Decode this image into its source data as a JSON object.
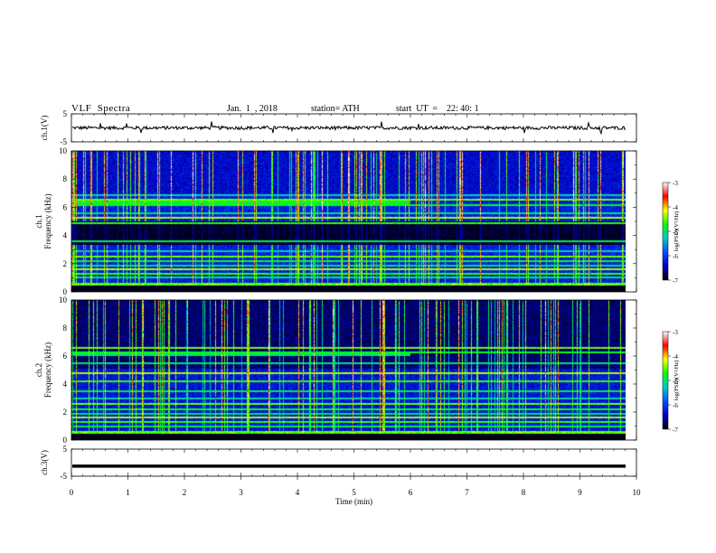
{
  "header": {
    "title": "VLF  Spectra",
    "date": "Jan.  1  , 2018",
    "station": "station= ATH",
    "start": "start  UT  =    22: 40: 1"
  },
  "colorbar": {
    "label": "log(PSD)(V²/Hz)",
    "ticks": [
      "-3",
      "-4",
      "-5",
      "-6",
      "-7"
    ],
    "stops": [
      "#000000",
      "#0000c8",
      "#0050ff",
      "#00c8c8",
      "#00ff00",
      "#ffff00",
      "#ff0000",
      "#ffffff"
    ]
  },
  "chart_data": [
    {
      "type": "line",
      "name": "ch1-waveform",
      "ylabel": "ch.1(V)",
      "ylim": [
        -5,
        5
      ],
      "yticks": [
        "5",
        "-5"
      ],
      "xlim": [
        0,
        10
      ],
      "approx_level": 0,
      "noise_amplitude": 0.6
    },
    {
      "type": "heatmap",
      "name": "ch1-spectrogram",
      "ylabel": "ch.1\nFrequency  (kHz)",
      "ylim": [
        0,
        10
      ],
      "yticks": [
        "0",
        "2",
        "4",
        "6",
        "8",
        "10"
      ],
      "xlim": [
        0,
        9.8
      ],
      "zlim": [
        -7,
        -3
      ],
      "narrowband_lines_khz": [
        0.5,
        1.0,
        1.3,
        1.6,
        1.9,
        2.2,
        2.5,
        2.9,
        3.6,
        4.9,
        5.3,
        5.6,
        6.2,
        6.6,
        6.9
      ]
    },
    {
      "type": "heatmap",
      "name": "ch2-spectrogram",
      "ylabel": "ch.2\nFrequency  (kHz)",
      "ylim": [
        0,
        10
      ],
      "yticks": [
        "0",
        "2",
        "4",
        "6",
        "8",
        "10"
      ],
      "xlim": [
        0,
        9.8
      ],
      "zlim": [
        -7,
        -3
      ],
      "narrowband_lines_khz": [
        0.5,
        1.0,
        1.3,
        1.6,
        1.9,
        2.2,
        2.6,
        3.0,
        3.5,
        4.2,
        4.8,
        5.5,
        6.3,
        6.6
      ]
    },
    {
      "type": "line",
      "name": "ch3-waveform",
      "ylabel": "ch.3(V)",
      "ylim": [
        -5,
        5
      ],
      "yticks": [
        "5",
        "-5"
      ],
      "xlim": [
        0,
        10
      ],
      "approx_level": -1.3
    }
  ],
  "xaxis": {
    "label": "Time  (min)",
    "ticks": [
      "0",
      "1",
      "2",
      "3",
      "4",
      "5",
      "6",
      "7",
      "8",
      "9",
      "10"
    ]
  }
}
